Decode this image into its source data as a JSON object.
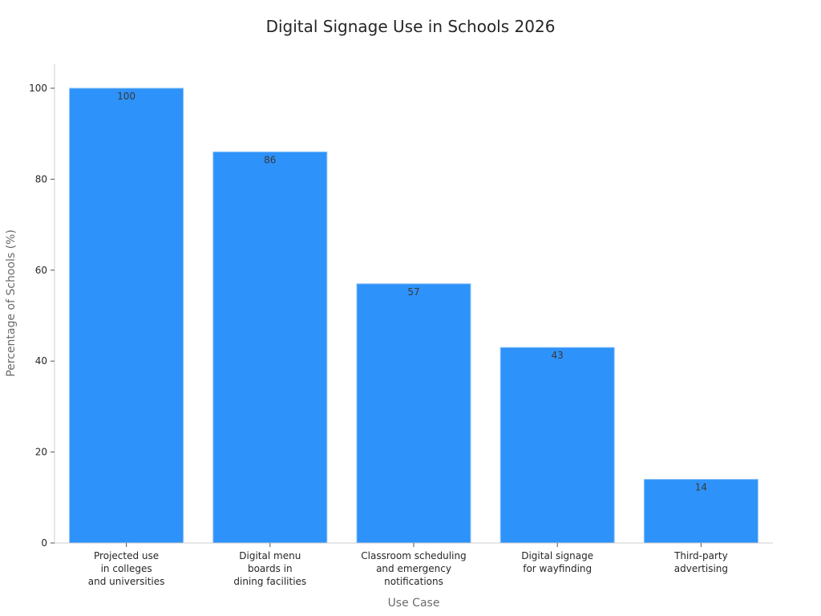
{
  "chart_data": {
    "type": "bar",
    "title": "Digital Signage Use in Schools 2026",
    "xlabel": "Use Case",
    "ylabel": "Percentage of Schools (%)",
    "categories": [
      [
        "Projected use",
        "in colleges",
        "and universities"
      ],
      [
        "Digital menu",
        "boards in",
        "dining facilities"
      ],
      [
        "Classroom scheduling",
        "and emergency",
        "notifications"
      ],
      [
        "Digital signage",
        "for wayfinding"
      ],
      [
        "Third-party",
        "advertising"
      ]
    ],
    "values": [
      100,
      86,
      57,
      43,
      14
    ],
    "ylim": [
      0,
      105
    ],
    "yticks": [
      0,
      20,
      40,
      60,
      80,
      100
    ],
    "bar_color": "#2d92f9",
    "grid": false,
    "legend": "none"
  }
}
